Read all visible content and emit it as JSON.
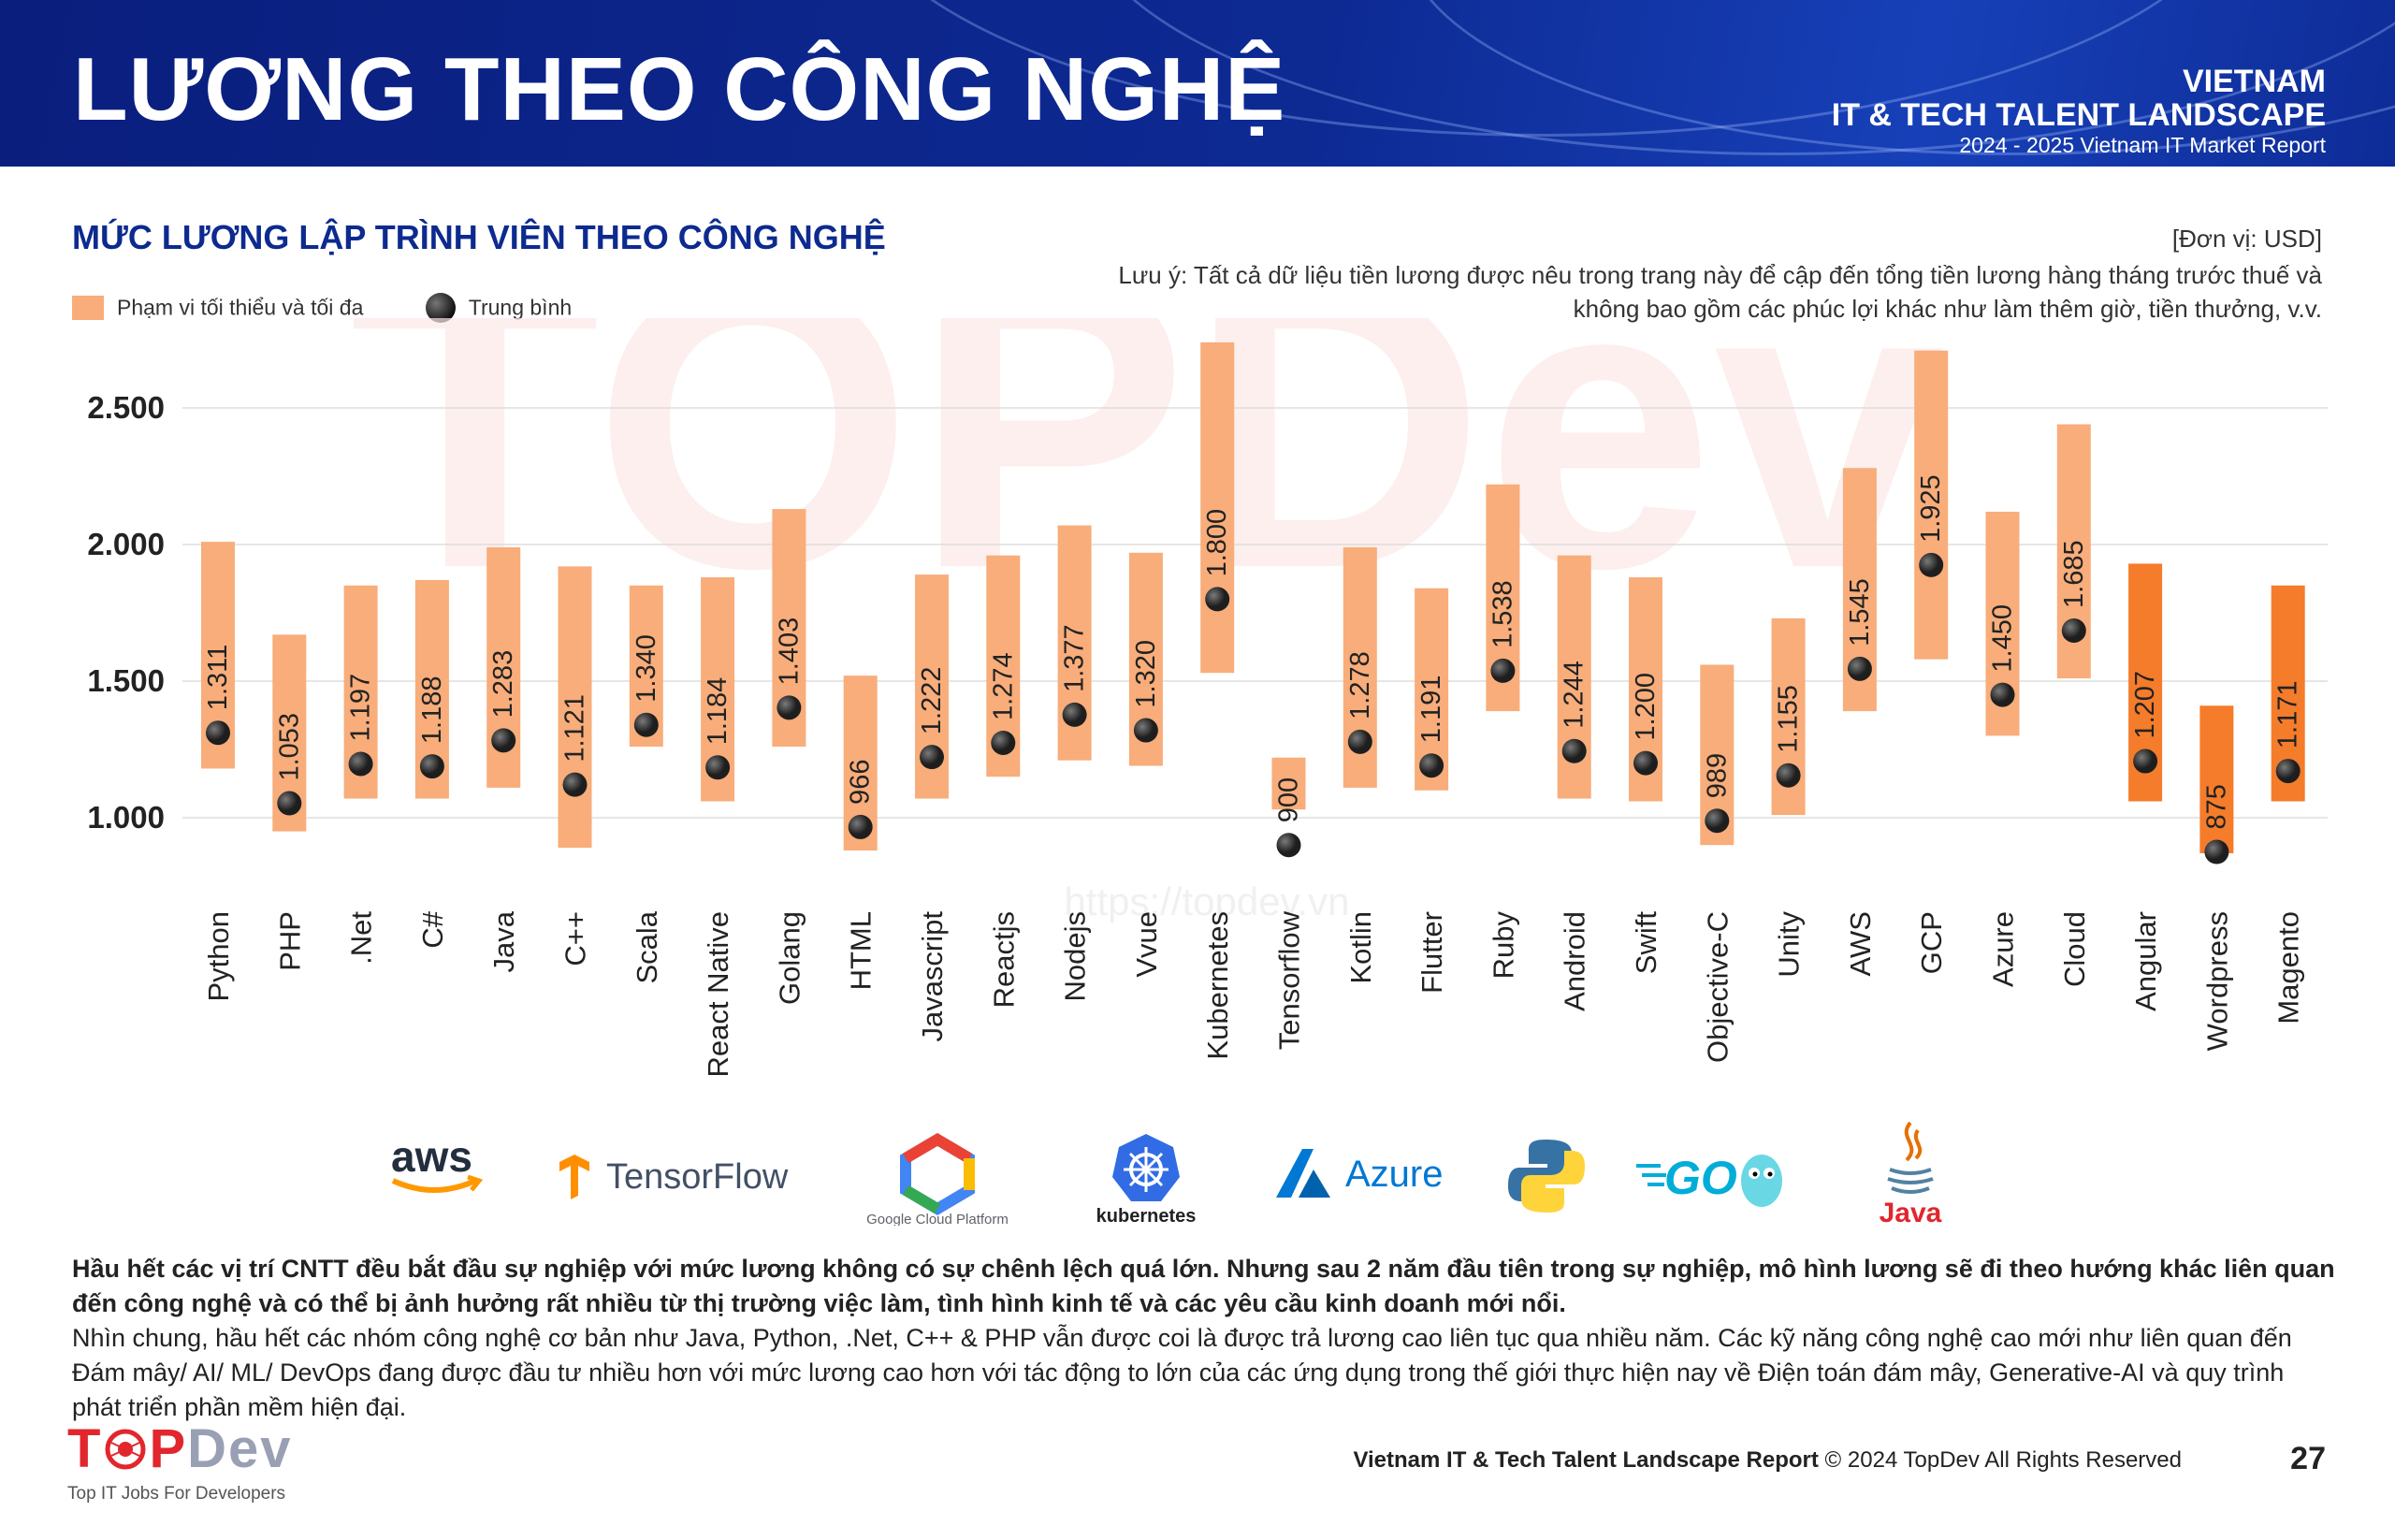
{
  "header": {
    "title": "LƯƠNG THEO CÔNG NGHỆ",
    "brand_line1": "VIETNAM",
    "brand_line2": "IT & TECH TALENT LANDSCAPE",
    "brand_line3": "2024 - 2025 Vietnam IT Market Report"
  },
  "chart_section": {
    "title": "MỨC LƯƠNG LẬP TRÌNH VIÊN THEO CÔNG NGHỆ",
    "unit": "[Đơn vị: USD]",
    "note": "Lưu ý: Tất cả dữ liệu tiền lương được nêu trong trang này để cập đến tổng tiền lương hàng tháng trước thuế và không bao gồm các phúc lợi khác như làm thêm giờ, tiền thưởng, v.v.",
    "legend_range": "Phạm vi tối thiểu và tối đa",
    "legend_avg": "Trung bình"
  },
  "chart_data": {
    "type": "range-bar",
    "title": "MỨC LƯƠNG LẬP TRÌNH VIÊN THEO CÔNG NGHỆ",
    "ylabel": "USD",
    "ylim": [
      800,
      2800
    ],
    "yticks": [
      1000,
      1500,
      2000,
      2500
    ],
    "ytick_labels": [
      "1.000",
      "1.500",
      "2.000",
      "2.500"
    ],
    "watermark": "https://topdev.vn",
    "categories": [
      "Python",
      "PHP",
      ".Net",
      "C#",
      "Java",
      "C++",
      "Scala",
      "React Native",
      "Golang",
      "HTML",
      "Javascript",
      "Reactjs",
      "Nodejs",
      "Vvue",
      "Kubernetes",
      "Tensorflow",
      "Kotlin",
      "Flutter",
      "Ruby",
      "Android",
      "Swift",
      "Objective-C",
      "Unity",
      "AWS",
      "GCP",
      "Azure",
      "Cloud",
      "Angular",
      "Wordpress",
      "Magento"
    ],
    "min": [
      1180,
      950,
      1070,
      1070,
      1110,
      890,
      1260,
      1060,
      1260,
      880,
      1070,
      1150,
      1210,
      1190,
      1530,
      1030,
      1110,
      1100,
      1390,
      1070,
      1060,
      900,
      1010,
      1390,
      1580,
      1300,
      1510,
      1060,
      870,
      1060
    ],
    "max": [
      2010,
      1670,
      1850,
      1870,
      1990,
      1920,
      1850,
      1880,
      2130,
      1520,
      1890,
      1960,
      2070,
      1970,
      2740,
      1220,
      1990,
      1840,
      2220,
      1960,
      1880,
      1560,
      1730,
      2280,
      2710,
      2120,
      2440,
      1930,
      1410,
      1850
    ],
    "avg": [
      1311,
      1053,
      1197,
      1188,
      1283,
      1121,
      1340,
      1184,
      1403,
      966,
      1222,
      1274,
      1377,
      1320,
      1800,
      900,
      1278,
      1191,
      1538,
      1244,
      1200,
      989,
      1155,
      1545,
      1925,
      1450,
      1685,
      1207,
      875,
      1171
    ],
    "avg_labels": [
      "1.311",
      "1.053",
      "1.197",
      "1.188",
      "1.283",
      "1.121",
      "1.340",
      "1.184",
      "1.403",
      "966",
      "1.222",
      "1.274",
      "1.377",
      "1.320",
      "1.800",
      "900",
      "1.278",
      "1.191",
      "1.538",
      "1.244",
      "1.200",
      "989",
      "1.155",
      "1.545",
      "1.925",
      "1.450",
      "1.685",
      "1.207",
      "875",
      "1.171"
    ],
    "colors": {
      "range_light": "#f8ad7a",
      "range_dark": "#f57c2a",
      "avg_dot": "#1e1e1e",
      "grid": "#dddddd"
    }
  },
  "logos": {
    "aws": "aws",
    "tensorflow": "TensorFlow",
    "gcp": "Google Cloud Platform",
    "kubernetes": "kubernetes",
    "azure": "Azure",
    "go": "GO",
    "java": "Java"
  },
  "summary": {
    "bold_text": "Hầu hết các vị trí CNTT đều bắt đầu sự nghiệp với mức lương không có sự chênh lệch quá lớn. Nhưng sau 2 năm đầu tiên trong sự nghiệp, mô hình lương sẽ đi theo hướng khác liên quan đến công nghệ và có thể bị ảnh hưởng rất nhiều từ thị trường việc làm, tình hình kinh tế và các yêu cầu kinh doanh mới nổi.",
    "normal_text": "Nhìn chung, hầu hết các nhóm công nghệ cơ bản như Java, Python, .Net, C++ & PHP vẫn được coi là được trả lương cao liên tục qua nhiều năm. Các kỹ năng công nghệ cao mới như liên quan đến Đám mây/ AI/ ML/ DevOps đang được đầu tư nhiều hơn với mức lương cao hơn với tác động to lớn của các ứng dụng trong thế giới thực hiện nay về Điện toán đám mây, Generative-AI và quy trình phát triển phần mềm hiện đại."
  },
  "footer": {
    "logo_top": "T",
    "logo_p": "P",
    "logo_dev": "Dev",
    "tagline": "Top IT Jobs For Developers",
    "report_name": "Vietnam IT & Tech Talent Landscape Report",
    "copyright": "© 2024 TopDev All Rights Reserved",
    "page_number": "27"
  }
}
